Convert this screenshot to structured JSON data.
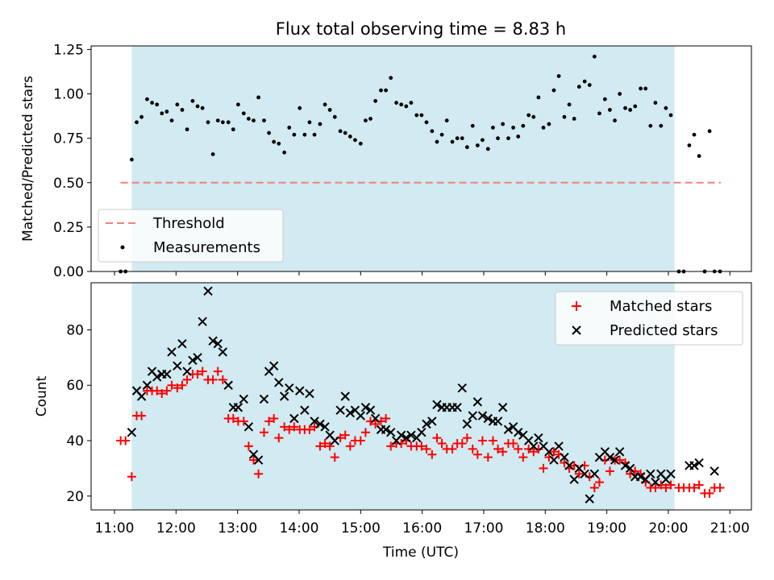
{
  "chart_data": [
    {
      "type": "scatter",
      "title": "Flux total observing time = 8.83 h",
      "xlabel": "",
      "ylabel": "Matched/Predicted stars",
      "xlim": [
        10.62,
        21.35
      ],
      "ylim": [
        0.0,
        1.27
      ],
      "yticks": [
        "0.00",
        "0.25",
        "0.50",
        "0.75",
        "1.00",
        "1.25"
      ],
      "ytick_values": [
        0.0,
        0.25,
        0.5,
        0.75,
        1.0,
        1.25
      ],
      "observing_window": [
        11.28,
        20.1
      ],
      "threshold": {
        "label": "Threshold",
        "value": 0.5,
        "x_start": 11.1,
        "x_end": 20.85,
        "color": "#f08080"
      },
      "legend": {
        "placement": "lower-left",
        "entries": [
          "Threshold",
          "Measurements"
        ]
      },
      "series": [
        {
          "name": "Measurements",
          "color": "#000000",
          "x": [
            11.1,
            11.18,
            11.28,
            11.36,
            11.44,
            11.53,
            11.61,
            11.69,
            11.77,
            11.85,
            11.93,
            12.02,
            12.1,
            12.18,
            12.27,
            12.35,
            12.43,
            12.52,
            12.6,
            12.68,
            12.76,
            12.85,
            12.93,
            13.01,
            13.1,
            13.18,
            13.26,
            13.34,
            13.43,
            13.51,
            13.59,
            13.67,
            13.76,
            13.84,
            13.92,
            14.01,
            14.09,
            14.17,
            14.25,
            14.34,
            14.42,
            14.5,
            14.58,
            14.67,
            14.75,
            14.83,
            14.91,
            15.0,
            15.08,
            15.16,
            15.24,
            15.33,
            15.41,
            15.49,
            15.58,
            15.66,
            15.74,
            15.82,
            15.91,
            15.99,
            16.07,
            16.16,
            16.24,
            16.32,
            16.4,
            16.49,
            16.57,
            16.65,
            16.73,
            16.82,
            16.9,
            16.98,
            17.07,
            17.15,
            17.23,
            17.31,
            17.4,
            17.48,
            17.56,
            17.64,
            17.73,
            17.81,
            17.89,
            17.97,
            18.06,
            18.14,
            18.22,
            18.31,
            18.39,
            18.47,
            18.55,
            18.64,
            18.72,
            18.8,
            18.88,
            18.97,
            19.05,
            19.13,
            19.21,
            19.3,
            19.38,
            19.46,
            19.55,
            19.63,
            19.71,
            19.79,
            19.88,
            19.96,
            20.04,
            20.17,
            20.25,
            20.34,
            20.42,
            20.5,
            20.59,
            20.67,
            20.75,
            20.84
          ],
          "y": [
            0.0,
            0.0,
            0.63,
            0.84,
            0.87,
            0.97,
            0.95,
            0.94,
            0.89,
            0.9,
            0.85,
            0.94,
            0.91,
            0.8,
            0.96,
            0.93,
            0.92,
            0.84,
            0.66,
            0.85,
            0.84,
            0.84,
            0.8,
            0.94,
            0.89,
            0.86,
            0.85,
            0.98,
            0.85,
            0.78,
            0.73,
            0.72,
            0.67,
            0.81,
            0.77,
            0.92,
            0.77,
            0.84,
            0.77,
            0.83,
            0.94,
            0.91,
            0.87,
            0.79,
            0.78,
            0.76,
            0.74,
            0.72,
            0.85,
            0.86,
            0.96,
            1.02,
            1.02,
            1.09,
            0.95,
            0.94,
            0.93,
            0.95,
            0.88,
            0.88,
            0.84,
            0.79,
            0.73,
            0.77,
            0.85,
            0.73,
            0.75,
            0.75,
            0.7,
            0.82,
            0.71,
            0.74,
            0.69,
            0.81,
            0.75,
            0.83,
            0.75,
            0.81,
            0.76,
            0.82,
            0.88,
            0.87,
            0.98,
            0.81,
            0.83,
            1.02,
            1.1,
            0.87,
            0.94,
            0.86,
            1.04,
            1.07,
            1.05,
            1.21,
            0.89,
            0.97,
            0.91,
            0.85,
            1.0,
            0.92,
            0.91,
            0.93,
            1.03,
            1.03,
            0.82,
            0.95,
            0.82,
            0.92,
            0.88,
            0.0,
            0.0,
            0.71,
            0.77,
            0.65,
            0.0,
            0.79,
            0.0,
            0.0
          ]
        }
      ]
    },
    {
      "type": "scatter",
      "title": "",
      "xlabel": "Time (UTC)",
      "ylabel": "Count",
      "xlim": [
        10.62,
        21.35
      ],
      "ylim": [
        15.0,
        97.0
      ],
      "yticks": [
        "20",
        "40",
        "60",
        "80"
      ],
      "ytick_values": [
        20,
        40,
        60,
        80
      ],
      "xticks": [
        "11:00",
        "12:00",
        "13:00",
        "14:00",
        "15:00",
        "16:00",
        "17:00",
        "18:00",
        "19:00",
        "20:00",
        "21:00"
      ],
      "xtick_values": [
        11,
        12,
        13,
        14,
        15,
        16,
        17,
        18,
        19,
        20,
        21
      ],
      "observing_window": [
        11.28,
        20.1
      ],
      "legend": {
        "placement": "top-right",
        "entries": [
          "Matched stars",
          "Predicted stars"
        ]
      },
      "series": [
        {
          "name": "Matched stars",
          "marker": "+",
          "color": "#ff0000",
          "x": [
            11.1,
            11.18,
            11.28,
            11.36,
            11.44,
            11.53,
            11.61,
            11.69,
            11.77,
            11.85,
            11.93,
            12.02,
            12.1,
            12.18,
            12.27,
            12.35,
            12.43,
            12.52,
            12.6,
            12.68,
            12.76,
            12.85,
            12.93,
            13.01,
            13.1,
            13.18,
            13.26,
            13.34,
            13.43,
            13.51,
            13.59,
            13.67,
            13.76,
            13.84,
            13.92,
            14.01,
            14.09,
            14.17,
            14.25,
            14.34,
            14.42,
            14.5,
            14.58,
            14.67,
            14.75,
            14.83,
            14.91,
            15.0,
            15.08,
            15.16,
            15.24,
            15.33,
            15.41,
            15.49,
            15.58,
            15.66,
            15.74,
            15.82,
            15.91,
            15.99,
            16.07,
            16.16,
            16.24,
            16.32,
            16.4,
            16.49,
            16.57,
            16.65,
            16.73,
            16.82,
            16.9,
            16.98,
            17.07,
            17.15,
            17.23,
            17.31,
            17.4,
            17.48,
            17.56,
            17.64,
            17.73,
            17.81,
            17.89,
            17.97,
            18.06,
            18.14,
            18.22,
            18.31,
            18.39,
            18.47,
            18.55,
            18.64,
            18.72,
            18.8,
            18.88,
            18.97,
            19.05,
            19.13,
            19.21,
            19.3,
            19.38,
            19.46,
            19.55,
            19.63,
            19.71,
            19.79,
            19.88,
            19.96,
            20.04,
            20.17,
            20.25,
            20.34,
            20.42,
            20.5,
            20.59,
            20.67,
            20.75,
            20.84
          ],
          "y": [
            40,
            40,
            27,
            49,
            49,
            58,
            58,
            58,
            57,
            58,
            60,
            59,
            60,
            62,
            64,
            64,
            65,
            62,
            62,
            65,
            62,
            48,
            48,
            47,
            47,
            38,
            33,
            28,
            43,
            47,
            48,
            41,
            45,
            44,
            45,
            44,
            44,
            44,
            45,
            38,
            39,
            38,
            34,
            41,
            42,
            38,
            40,
            40,
            43,
            47,
            46,
            47,
            48,
            38,
            39,
            39,
            40,
            38,
            38,
            38,
            37,
            35,
            41,
            39,
            37,
            37,
            39,
            39,
            41,
            37,
            35,
            40,
            34,
            40,
            37,
            36,
            39,
            39,
            37,
            34,
            37,
            36,
            37,
            30,
            34,
            36,
            35,
            32,
            30,
            31,
            28,
            31,
            27,
            23,
            25,
            33,
            29,
            33,
            33,
            32,
            28,
            29,
            28,
            25,
            23,
            23,
            24,
            23,
            24,
            23,
            23,
            23,
            23,
            24,
            21,
            21,
            23,
            23
          ]
        },
        {
          "name": "Predicted stars",
          "marker": "x",
          "color": "#000000",
          "x": [
            11.28,
            11.36,
            11.44,
            11.53,
            11.61,
            11.69,
            11.77,
            11.85,
            11.93,
            12.02,
            12.1,
            12.18,
            12.27,
            12.35,
            12.43,
            12.52,
            12.6,
            12.68,
            12.76,
            12.85,
            12.93,
            13.01,
            13.1,
            13.18,
            13.26,
            13.34,
            13.43,
            13.51,
            13.59,
            13.67,
            13.76,
            13.84,
            13.92,
            14.01,
            14.09,
            14.17,
            14.25,
            14.34,
            14.42,
            14.5,
            14.58,
            14.67,
            14.75,
            14.83,
            14.91,
            15.0,
            15.08,
            15.16,
            15.24,
            15.33,
            15.41,
            15.49,
            15.58,
            15.66,
            15.74,
            15.82,
            15.91,
            15.99,
            16.07,
            16.16,
            16.24,
            16.32,
            16.4,
            16.49,
            16.57,
            16.65,
            16.73,
            16.82,
            16.9,
            16.98,
            17.07,
            17.15,
            17.23,
            17.31,
            17.4,
            17.48,
            17.56,
            17.64,
            17.73,
            17.81,
            17.89,
            17.97,
            18.06,
            18.14,
            18.22,
            18.31,
            18.39,
            18.47,
            18.55,
            18.64,
            18.72,
            18.8,
            18.88,
            18.97,
            19.05,
            19.13,
            19.21,
            19.3,
            19.38,
            19.46,
            19.55,
            19.63,
            19.71,
            19.79,
            19.88,
            19.96,
            20.04,
            20.34,
            20.42,
            20.5,
            20.75
          ],
          "y": [
            43,
            58,
            56,
            60,
            65,
            63,
            64,
            64,
            72,
            67,
            75,
            65,
            69,
            70,
            83,
            94,
            76,
            75,
            72,
            60,
            52,
            52,
            55,
            45,
            35,
            33,
            55,
            65,
            67,
            61,
            56,
            59,
            48,
            58,
            51,
            57,
            47,
            46,
            45,
            42,
            40,
            51,
            56,
            50,
            51,
            49,
            52,
            51,
            48,
            44,
            44,
            43,
            40,
            42,
            41,
            42,
            41,
            43,
            46,
            47,
            53,
            52,
            52,
            52,
            52,
            59,
            46,
            49,
            54,
            49,
            48,
            47,
            47,
            52,
            44,
            45,
            43,
            42,
            40,
            38,
            41,
            38,
            36,
            33,
            38,
            34,
            31,
            26,
            30,
            28,
            19,
            28,
            34,
            36,
            34,
            33,
            36,
            31,
            30,
            27,
            27,
            26,
            28,
            25,
            28,
            26,
            28,
            31,
            31,
            32,
            29
          ]
        }
      ]
    }
  ]
}
